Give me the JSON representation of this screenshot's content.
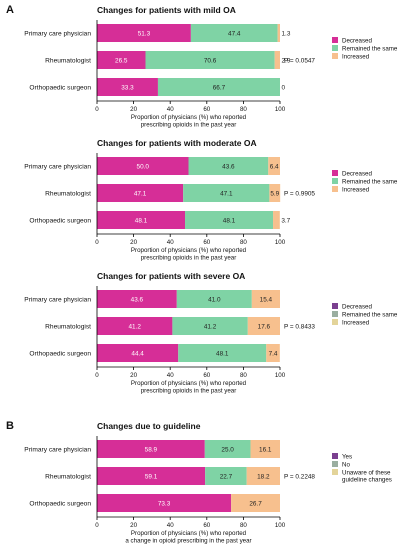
{
  "chart_data": [
    {
      "type": "bar",
      "panel_letter": "A",
      "title": "Changes for patients with mild OA",
      "categories": [
        "Primary care physician",
        "Rheumatologist",
        "Orthopaedic surgeon"
      ],
      "series": [
        {
          "name": "Decreased",
          "values": [
            51.3,
            26.5,
            33.3
          ],
          "color": "#d62e97"
        },
        {
          "name": "Remained the same",
          "values": [
            47.4,
            70.6,
            66.7
          ],
          "color": "#7fd3a5"
        },
        {
          "name": "Increased",
          "values": [
            1.3,
            2.9,
            0
          ],
          "color": "#f7c08e"
        }
      ],
      "data_labels": [
        [
          "51.3",
          "47.4",
          "1.3"
        ],
        [
          "26.5",
          "70.6",
          "2.9"
        ],
        [
          "33.3",
          "66.7",
          "0"
        ]
      ],
      "xlim": [
        0,
        100
      ],
      "xticks": [
        "0",
        "20",
        "40",
        "60",
        "80",
        "100"
      ],
      "xlabel": [
        "Proportion of physicians (%) who reported",
        "prescribing opioids in the past year"
      ],
      "p_value": "P = 0.0547",
      "legend_position": "right"
    },
    {
      "type": "bar",
      "title": "Changes for patients with moderate OA",
      "categories": [
        "Primary care physician",
        "Rheumatologist",
        "Orthopaedic surgeon"
      ],
      "series": [
        {
          "name": "Decreased",
          "values": [
            50.0,
            47.1,
            48.1
          ],
          "color": "#d62e97"
        },
        {
          "name": "Remained the same",
          "values": [
            43.6,
            47.1,
            48.1
          ],
          "color": "#7fd3a5"
        },
        {
          "name": "Increased",
          "values": [
            6.4,
            5.9,
            3.7
          ],
          "color": "#f7c08e"
        }
      ],
      "data_labels": [
        [
          "50.0",
          "43.6",
          "6.4"
        ],
        [
          "47.1",
          "47.1",
          "5.9"
        ],
        [
          "48.1",
          "48.1",
          "3.7"
        ]
      ],
      "xlim": [
        0,
        100
      ],
      "xticks": [
        "0",
        "20",
        "40",
        "60",
        "80",
        "100"
      ],
      "xlabel": [
        "Proportion of physicians (%) who reported",
        "prescribing opioids in the past year"
      ],
      "p_value": "P = 0.9905",
      "legend_position": "right"
    },
    {
      "type": "bar",
      "title": "Changes for patients with severe OA",
      "categories": [
        "Primary care physician",
        "Rheumatologist",
        "Orthopaedic surgeon"
      ],
      "series": [
        {
          "name": "Decreased",
          "values": [
            43.6,
            41.2,
            44.4
          ],
          "color": "#d62e97"
        },
        {
          "name": "Remained the same",
          "values": [
            41.0,
            41.2,
            48.1
          ],
          "color": "#7fd3a5"
        },
        {
          "name": "Increased",
          "values": [
            15.4,
            17.6,
            7.4
          ],
          "color": "#f7c08e"
        }
      ],
      "data_labels": [
        [
          "43.6",
          "41.0",
          "15.4"
        ],
        [
          "41.2",
          "41.2",
          "17.6"
        ],
        [
          "44.4",
          "48.1",
          "7.4"
        ]
      ],
      "xlim": [
        0,
        100
      ],
      "xticks": [
        "0",
        "20",
        "40",
        "60",
        "80",
        "100"
      ],
      "xlabel": [
        "Proportion of physicians (%) who reported",
        "prescribing opioids in the past year"
      ],
      "p_value": "P = 0.8433",
      "legend_position": "right",
      "legend_colors": [
        "#7a3f8f",
        "#9aaea0",
        "#e3d49a"
      ]
    },
    {
      "type": "bar",
      "panel_letter": "B",
      "title": "Changes due to guideline",
      "categories": [
        "Primary care physician",
        "Rheumatologist",
        "Orthopaedic surgeon"
      ],
      "series": [
        {
          "name": "Yes",
          "values": [
            58.9,
            59.1,
            73.3
          ],
          "color": "#d62e97"
        },
        {
          "name": "No",
          "values": [
            25.0,
            22.7,
            0
          ],
          "color": "#7fd3a5"
        },
        {
          "name": "Unaware of these guideline changes",
          "values": [
            16.1,
            18.2,
            26.7
          ],
          "color": "#f7c08e"
        }
      ],
      "data_labels": [
        [
          "58.9",
          "25.0",
          "16.1"
        ],
        [
          "59.1",
          "22.7",
          "18.2"
        ],
        [
          "73.3",
          "0",
          "26.7"
        ]
      ],
      "xlim": [
        0,
        100
      ],
      "xticks": [
        "0",
        "20",
        "40",
        "60",
        "80",
        "100"
      ],
      "xlabel": [
        "Proportion of physicians (%) who reported",
        "a change in opioid prescribing in the past year"
      ],
      "p_value": "P = 0.2248",
      "legend_position": "right",
      "legend_colors": [
        "#7a3f8f",
        "#9aaea0",
        "#e3d49a"
      ]
    }
  ]
}
